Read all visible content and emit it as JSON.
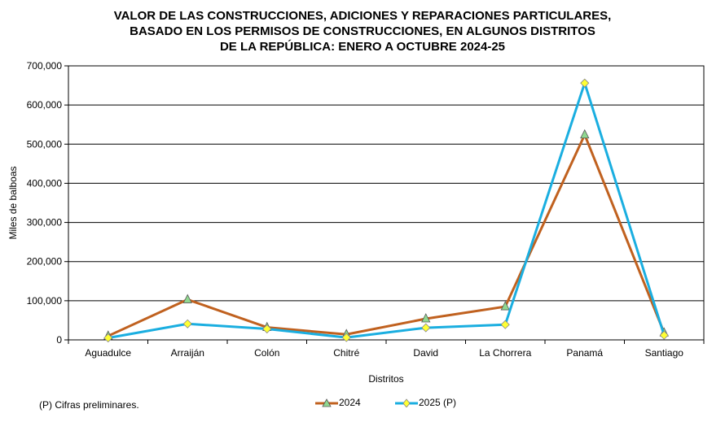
{
  "chart_data": {
    "type": "line",
    "title_lines": [
      "VALOR DE LAS CONSTRUCCIONES, ADICIONES Y REPARACIONES PARTICULARES,",
      "BASADO EN LOS PERMISOS DE CONSTRUCCIONES, EN ALGUNOS DISTRITOS",
      "DE LA REPÚBLICA: ENERO A OCTUBRE 2024-25"
    ],
    "xlabel": "Distritos",
    "ylabel": "Miles de balboas",
    "categories": [
      "Aguadulce",
      "Arraiján",
      "Colón",
      "Chitré",
      "David",
      "La Chorrera",
      "Panamá",
      "Santiago"
    ],
    "ylim": [
      0,
      700000
    ],
    "yticks": [
      0,
      100000,
      200000,
      300000,
      400000,
      500000,
      600000,
      700000
    ],
    "ytick_labels": [
      "0",
      "100,000",
      "200,000",
      "300,000",
      "400,000",
      "500,000",
      "600,000",
      "700,000"
    ],
    "grid": true,
    "legend_position": "bottom",
    "series": [
      {
        "name": "2024",
        "color": "#C0611F",
        "marker": "triangle",
        "marker_color": "#90D890",
        "values": [
          10000,
          103000,
          32000,
          14000,
          54000,
          85000,
          524000,
          18000
        ]
      },
      {
        "name": "2025 (P)",
        "color": "#1AAEE0",
        "marker": "diamond",
        "marker_color": "#FFFF33",
        "values": [
          5000,
          41000,
          28000,
          6000,
          31000,
          39000,
          656000,
          12000
        ]
      }
    ],
    "footnote": "(P) Cifras  preliminares."
  }
}
